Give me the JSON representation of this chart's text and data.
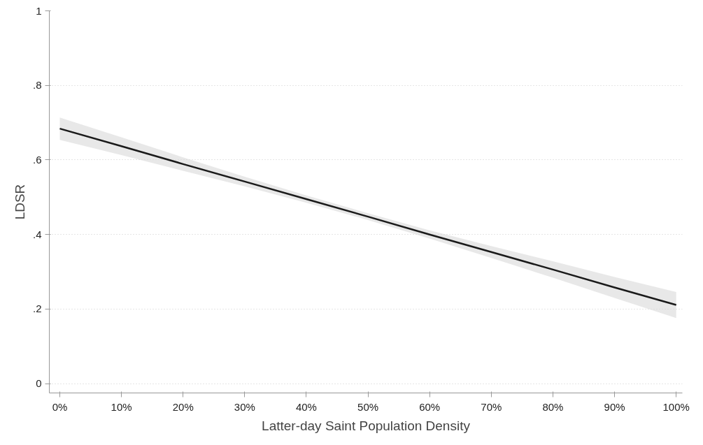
{
  "chart_data": {
    "type": "line",
    "xlabel": "Latter-day Saint Population Density",
    "ylabel": "LDSR",
    "x": [
      0,
      10,
      20,
      30,
      40,
      50,
      60,
      70,
      80,
      90,
      100
    ],
    "series": [
      {
        "color": "#1a1a1a",
        "values": [
          0.684,
          0.637,
          0.589,
          0.542,
          0.495,
          0.448,
          0.4,
          0.353,
          0.306,
          0.258,
          0.211
        ],
        "lower": [
          0.654,
          0.613,
          0.571,
          0.529,
          0.485,
          0.439,
          0.389,
          0.337,
          0.284,
          0.23,
          0.176
        ],
        "upper": [
          0.714,
          0.661,
          0.607,
          0.555,
          0.505,
          0.457,
          0.411,
          0.369,
          0.328,
          0.286,
          0.246
        ]
      }
    ],
    "xlim": [
      -1.7,
      101
    ],
    "ylim": [
      -0.025,
      1
    ],
    "xticks": [
      {
        "value": 0,
        "label": "0%"
      },
      {
        "value": 10,
        "label": "10%"
      },
      {
        "value": 20,
        "label": "20%"
      },
      {
        "value": 30,
        "label": "30%"
      },
      {
        "value": 40,
        "label": "40%"
      },
      {
        "value": 50,
        "label": "50%"
      },
      {
        "value": 60,
        "label": "60%"
      },
      {
        "value": 70,
        "label": "70%"
      },
      {
        "value": 80,
        "label": "80%"
      },
      {
        "value": 90,
        "label": "90%"
      },
      {
        "value": 100,
        "label": "100%"
      }
    ],
    "yticks": [
      0,
      {
        "value": 0.2,
        "label": ".2"
      },
      {
        "value": 0.4,
        "label": ".4"
      },
      {
        "value": 0.6,
        "label": ".6"
      },
      {
        "value": 0.8,
        "label": ".8"
      },
      1
    ],
    "grid": "y",
    "line_style": "solid"
  }
}
